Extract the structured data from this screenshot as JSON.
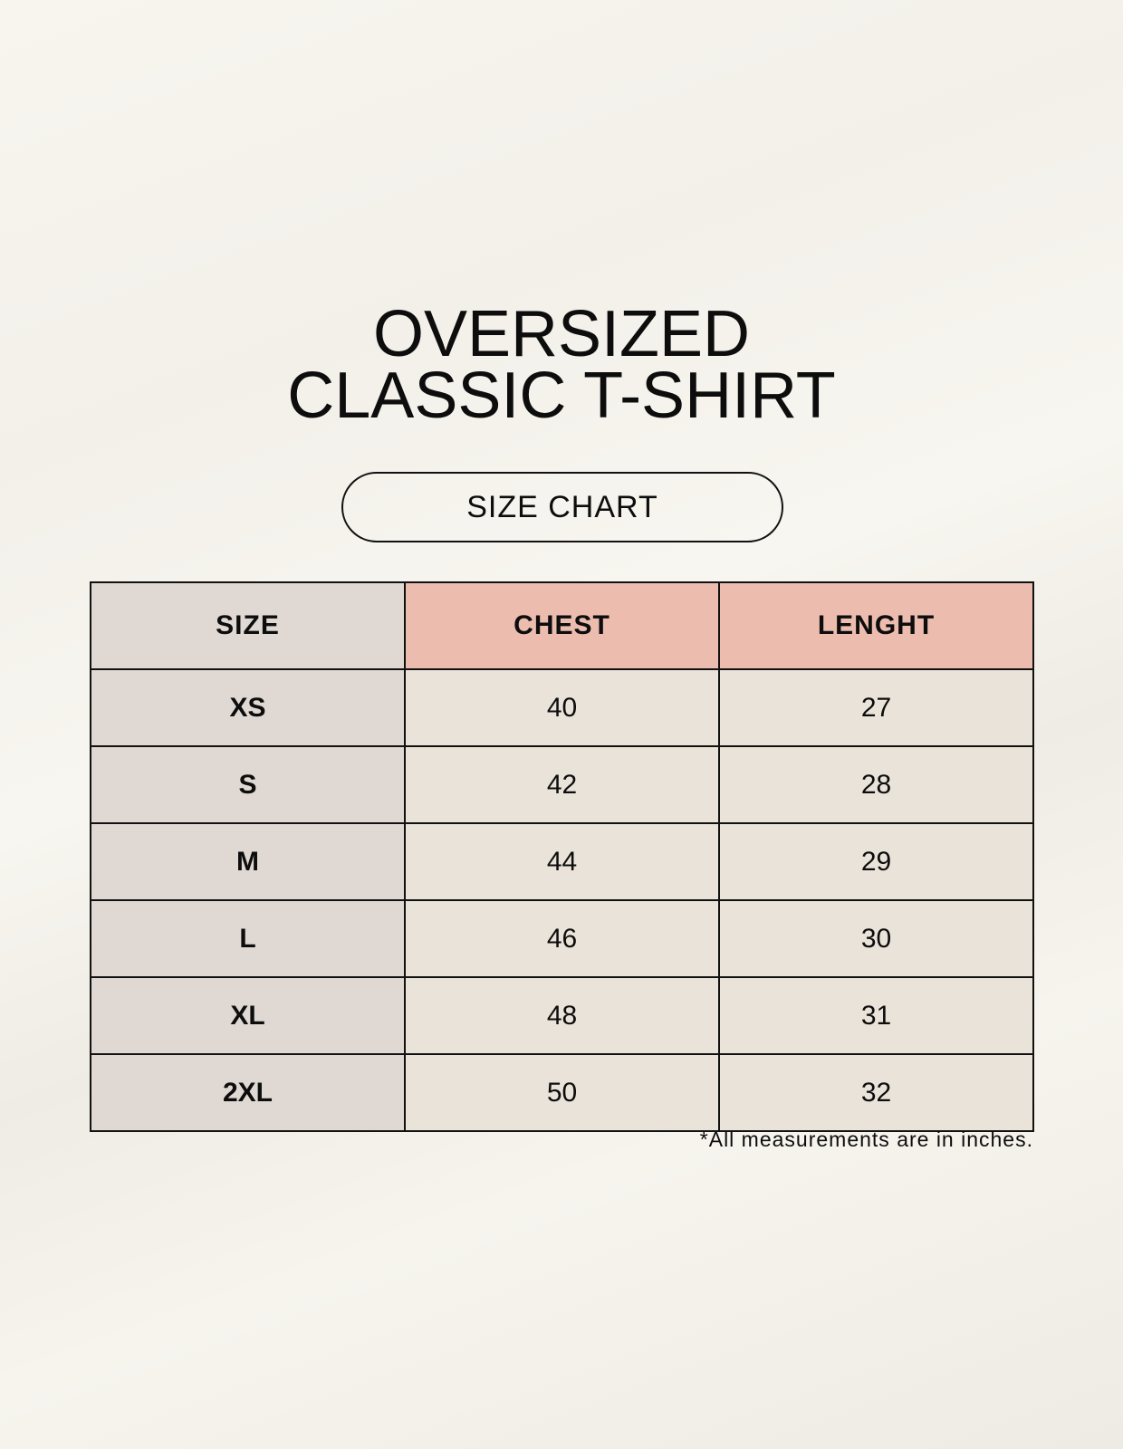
{
  "title_line1": "OVERSIZED",
  "title_line2": "CLASSIC T-SHIRT",
  "subtitle": "SIZE CHART",
  "headers": [
    "SIZE",
    "CHEST",
    "LENGHT"
  ],
  "rows": [
    {
      "size": "XS",
      "chest": "40",
      "length": "27"
    },
    {
      "size": "S",
      "chest": "42",
      "length": "28"
    },
    {
      "size": "M",
      "chest": "44",
      "length": "29"
    },
    {
      "size": "L",
      "chest": "46",
      "length": "30"
    },
    {
      "size": "XL",
      "chest": "48",
      "length": "31"
    },
    {
      "size": "2XL",
      "chest": "50",
      "length": "32"
    }
  ],
  "footnote": "*All measurements are in inches.",
  "colors": {
    "size_column": "#e0d9d3",
    "header_accent": "#ecbcaf",
    "value_cells": "#eae3d9"
  }
}
